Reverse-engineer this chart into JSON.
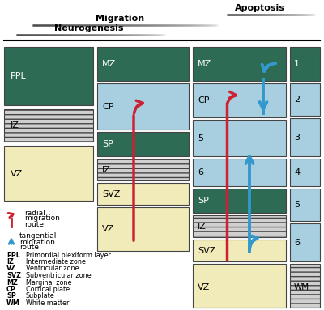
{
  "colors": {
    "green_dark": "#2d6b55",
    "blue_light": "#a8cfe0",
    "yellow_light": "#f0ebb8",
    "gray_light": "#d0d0d0",
    "white": "#ffffff",
    "red_arrow": "#cc2233",
    "blue_arrow": "#3399cc",
    "stripe_bg": "#c8c8c8"
  },
  "title_migration": "Migration",
  "title_neurogenesis": "Neurogenesis",
  "title_apoptosis": "Apoptosis",
  "legend_items": [
    [
      "PPL",
      "Primordial plexiform layer"
    ],
    [
      "IZ",
      "Intermediate zone"
    ],
    [
      "VZ",
      "Ventricular zone"
    ],
    [
      "SVZ",
      "Subventricular zone"
    ],
    [
      "MZ",
      "Marginal zone"
    ],
    [
      "CP",
      "Cortical plate"
    ],
    [
      "SP",
      "Subplate"
    ],
    [
      "WM",
      "White matter"
    ]
  ]
}
